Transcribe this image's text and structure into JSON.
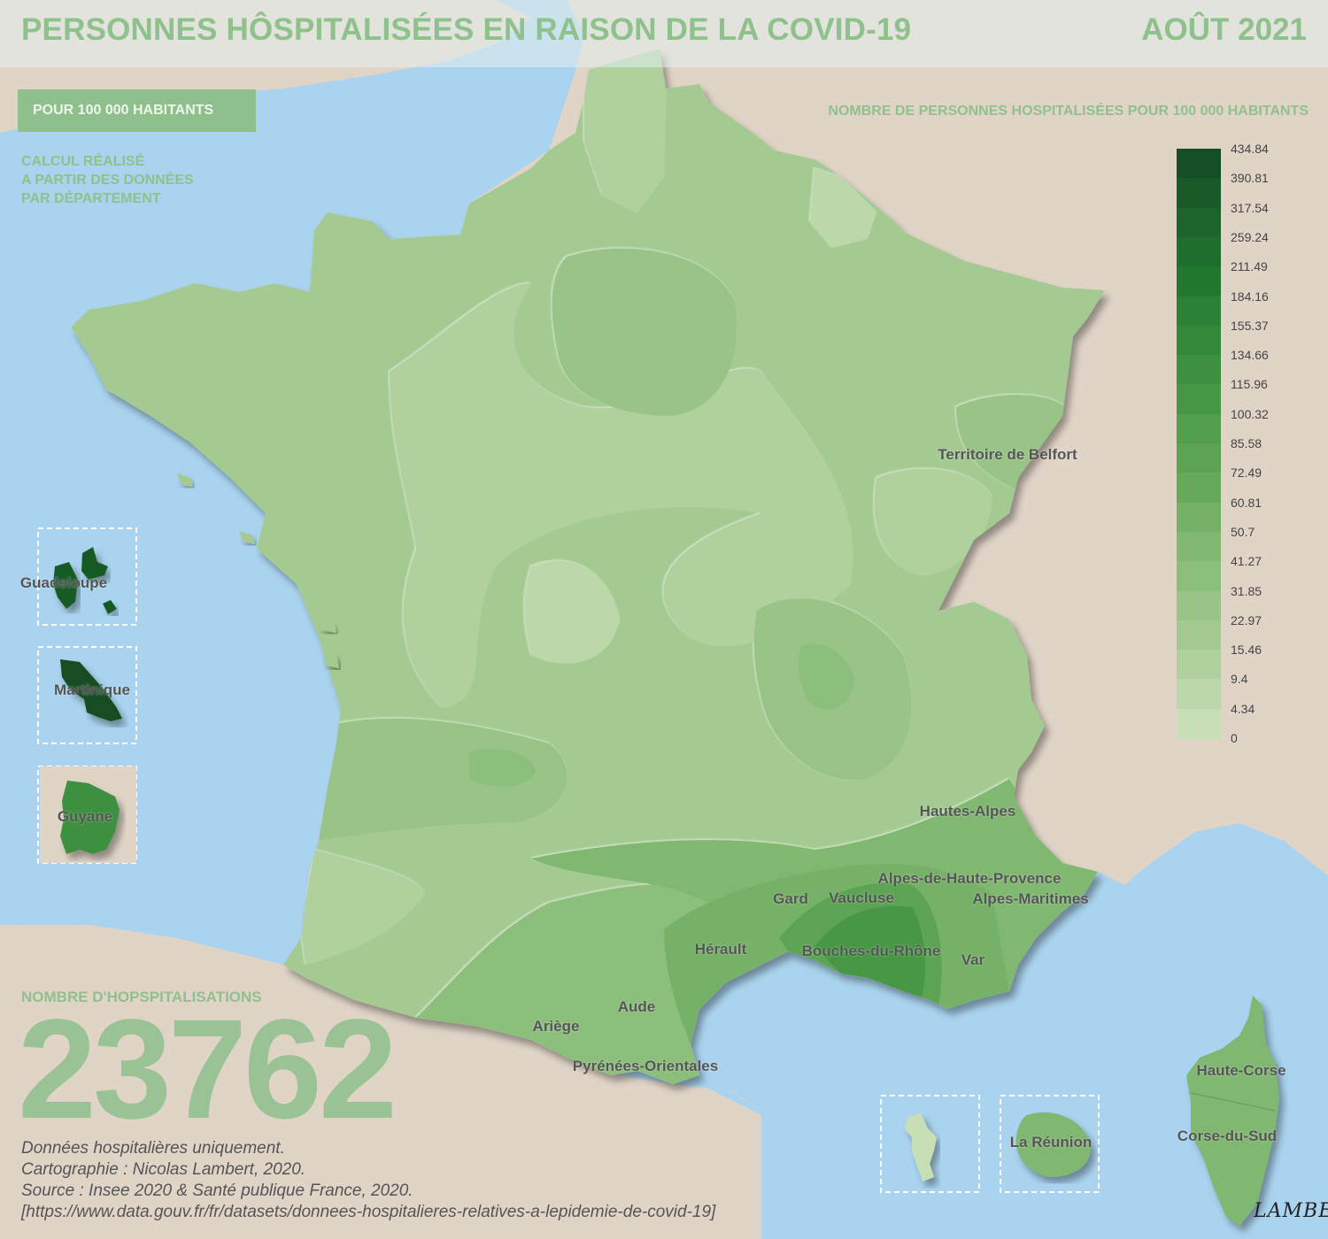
{
  "header": {
    "title": "PERSONNES HÔSPITALISÉES EN RAISON DE LA COVID-19",
    "date": "AOÛT 2021"
  },
  "tab_per100k": "POUR 100 000 HABITANTS",
  "calc_note": [
    "CALCUL RÉALISÉ",
    "A PARTIR DES DONNÉES",
    "PAR DÉPARTEMENT"
  ],
  "legend": {
    "title": "NOMBRE DE PERSONNES HOSPITALISÉES POUR 100 000 HABITANTS",
    "breaks": [
      "434.84",
      "390.81",
      "317.54",
      "259.24",
      "211.49",
      "184.16",
      "155.37",
      "134.66",
      "115.96",
      "100.32",
      "85.58",
      "72.49",
      "60.81",
      "50.7",
      "41.27",
      "31.85",
      "22.97",
      "15.46",
      "9.4",
      "4.34",
      "0"
    ],
    "colors": [
      "#144e24",
      "#185a28",
      "#1c642b",
      "#1f6e2e",
      "#237830",
      "#2b8134",
      "#338939",
      "#3c903f",
      "#469745",
      "#519e4c",
      "#5ca453",
      "#68aa5c",
      "#74b166",
      "#80b771",
      "#8cbe7c",
      "#98c487",
      "#a4ca92",
      "#b0d19e",
      "#bcd8aa",
      "#c8dfb6"
    ]
  },
  "hospitalisations": {
    "label": "NOMBRE D'HOPSPITALISATIONS",
    "value": "23762"
  },
  "source": [
    "Données hospitalières uniquement.",
    "Cartographie : Nicolas Lambert, 2020.",
    "Source : Insee 2020 & Santé publique France, 2020.",
    "[https://www.data.gouv.fr/fr/datasets/donnees-hospitalieres-relatives-a-lepidemie-de-covid-19]"
  ],
  "places": {
    "territoire_de_belfort": "Territoire de Belfort",
    "hautes_alpes": "Hautes-Alpes",
    "alpes_de_haute_provence": "Alpes-de-Haute-Provence",
    "gard": "Gard",
    "vaucluse": "Vaucluse",
    "alpes_maritimes": "Alpes-Maritimes",
    "herault": "Hérault",
    "bouches_du_rhone": "Bouches-du-Rhône",
    "var": "Var",
    "aude": "Aude",
    "ariege": "Ariège",
    "pyrenees_orientales": "Pyrénées-Orientales",
    "haute_corse": "Haute-Corse",
    "corse_du_sud": "Corse-du-Sud",
    "guadeloupe": "Guadeloupe",
    "martinique": "Martinique",
    "guyane": "Guyane",
    "la_reunion": "La Réunion"
  },
  "signature": "LAMBERT"
}
